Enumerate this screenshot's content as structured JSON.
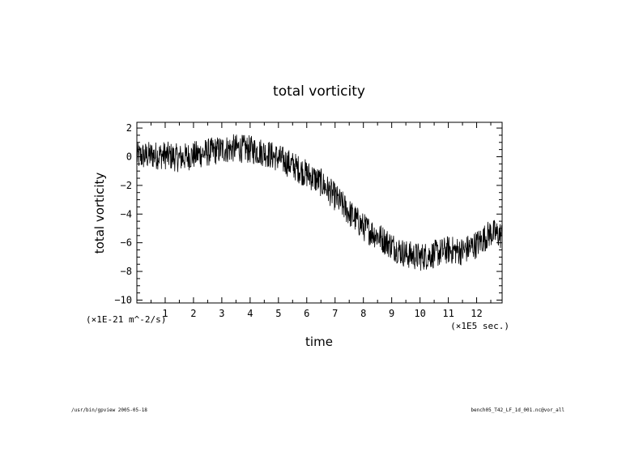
{
  "chart_data": {
    "type": "line",
    "title": "total vorticity",
    "xlabel": "time",
    "ylabel": "total vorticity",
    "x_unit": "(×1E5 sec.)",
    "y_unit": "(×1E-21 m^-2/s)",
    "xlim": [
      0.0,
      12.9
    ],
    "ylim": [
      -10.2,
      2.4
    ],
    "x_ticks": [
      1,
      2,
      3,
      4,
      5,
      6,
      7,
      8,
      9,
      10,
      11,
      12
    ],
    "x_tick_labels": [
      "1",
      "2",
      "3",
      "4",
      "5",
      "6",
      "7",
      "8",
      "9",
      "10",
      "11",
      "12"
    ],
    "y_ticks": [
      2,
      0,
      -2,
      -4,
      -6,
      -8,
      -10
    ],
    "y_tick_labels": [
      "2",
      "0",
      "−2",
      "−4",
      "−6",
      "−8",
      "−10"
    ],
    "grid": false,
    "series": [
      {
        "x": [
          0.0,
          0.5,
          1.0,
          1.5,
          2.0,
          2.5,
          3.0,
          3.5,
          4.0,
          4.5,
          5.0,
          5.5,
          6.0,
          6.5,
          7.0,
          7.5,
          8.0,
          8.5,
          9.0,
          9.5,
          10.0,
          10.5,
          11.0,
          11.5,
          12.0,
          12.5,
          12.9
        ],
        "values": [
          0.0,
          0.1,
          0.1,
          -0.1,
          0.1,
          0.3,
          0.5,
          0.6,
          0.5,
          0.3,
          -0.1,
          -0.6,
          -1.2,
          -1.8,
          -2.8,
          -3.9,
          -4.9,
          -5.5,
          -6.2,
          -6.8,
          -7.0,
          -6.8,
          -6.5,
          -6.6,
          -6.1,
          -5.3,
          -5.5
        ],
        "noise_amplitude": 1.0
      }
    ]
  },
  "footer": {
    "left": "/usr/bin/gpview  2005-05-18",
    "right": "bench05_T42_LF_1d_001.nc@vor_all"
  }
}
